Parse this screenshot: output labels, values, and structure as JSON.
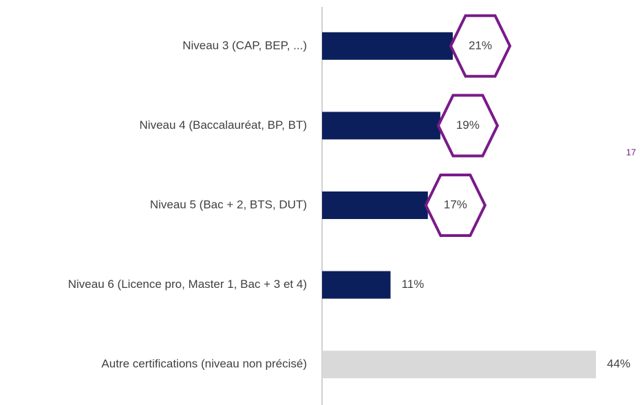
{
  "chart_data": {
    "type": "bar",
    "orientation": "horizontal",
    "categories": [
      "Niveau 3 (CAP, BEP, ...)",
      "Niveau 4 (Baccalauréat, BP, BT)",
      "Niveau 5 (Bac + 2, BTS, DUT)",
      "Niveau 6 (Licence pro, Master 1, Bac + 3 et 4)",
      "Autre certifications (niveau non précisé)"
    ],
    "values": [
      21,
      19,
      17,
      11,
      44
    ],
    "value_labels": [
      "21%",
      "19%",
      "17%",
      "11%",
      "44%"
    ],
    "colors": [
      "#0b1f5c",
      "#0b1f5c",
      "#0b1f5c",
      "#0b1f5c",
      "#d9d9d9"
    ],
    "highlighted": [
      true,
      true,
      true,
      false,
      false
    ],
    "highlight_color": "#7a1a8a"
  },
  "page_number": "17"
}
